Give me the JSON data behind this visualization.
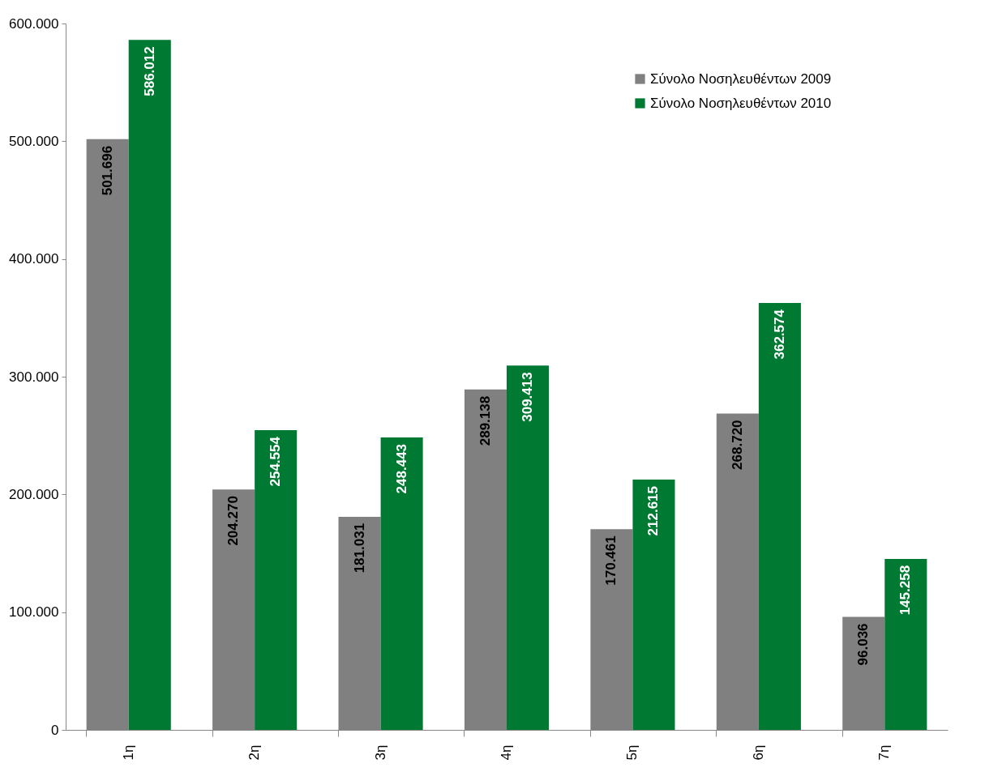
{
  "chart_data": {
    "type": "bar",
    "categories": [
      "1η",
      "2η",
      "3η",
      "4η",
      "5η",
      "6η",
      "7η"
    ],
    "series": [
      {
        "name": "Σύνολο Νοσηλευθέντων 2009",
        "color": "#808080",
        "values": [
          501696,
          204270,
          181031,
          289138,
          170461,
          268720,
          96036
        ],
        "value_labels": [
          "501.696",
          "204.270",
          "181.031",
          "289.138",
          "170.461",
          "268.720",
          "96.036"
        ]
      },
      {
        "name": "Σύνολο Νοσηλευθέντων 2010",
        "color": "#007a33",
        "values": [
          586012,
          254554,
          248443,
          309413,
          212615,
          362574,
          145258
        ],
        "value_labels": [
          "586.012",
          "254.554",
          "248.443",
          "309.413",
          "212.615",
          "362.574",
          "145.258"
        ]
      }
    ],
    "ylim": [
      0,
      600000
    ],
    "yticks": [
      {
        "value": 0,
        "label": "0"
      },
      {
        "value": 100000,
        "label": "100.000"
      },
      {
        "value": 200000,
        "label": "200.000"
      },
      {
        "value": 300000,
        "label": "300.000"
      },
      {
        "value": 400000,
        "label": "400.000"
      },
      {
        "value": 500000,
        "label": "500.000"
      },
      {
        "value": 600000,
        "label": "600.000"
      }
    ],
    "grid": false,
    "legend": "top right"
  }
}
